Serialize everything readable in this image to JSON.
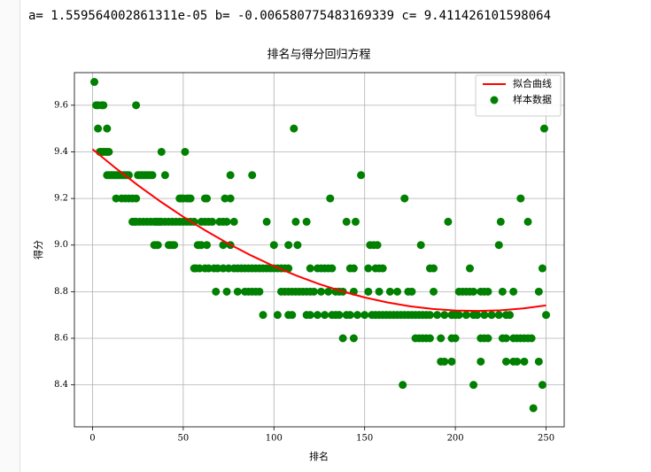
{
  "output_text": "a= 1.559564002861311e-05 b= -0.006580775483169339 c= 9.411426101598064",
  "chart_data": {
    "type": "scatter",
    "title": "排名与得分回归方程",
    "x_label": "排名",
    "y_label": "得分",
    "xlim": [
      -10,
      260
    ],
    "ylim": [
      8.22,
      9.74
    ],
    "xticks": [
      0,
      50,
      100,
      150,
      200,
      250
    ],
    "yticks": [
      8.4,
      8.6,
      8.8,
      {
        "value": 9,
        "label": "9.0"
      },
      9.2,
      9.4,
      9.6
    ],
    "grid": true,
    "legend": "upper right",
    "series": [
      {
        "name": "拟合曲线",
        "type": "line",
        "color": "#ff0000",
        "x": [
          0,
          12.5,
          25,
          37.5,
          50,
          62.5,
          75,
          87.5,
          100,
          112.5,
          125,
          137.5,
          150,
          162.5,
          175,
          187.5,
          200,
          212.5,
          225,
          237.5,
          250
        ],
        "values": [
          9.4114,
          9.3316,
          9.2566,
          9.1866,
          9.1214,
          9.0611,
          9.0056,
          8.955,
          8.9093,
          8.8685,
          8.8325,
          8.8014,
          8.7752,
          8.7539,
          8.7374,
          8.7258,
          8.7191,
          8.7173,
          8.7203,
          8.7282,
          8.741
        ]
      },
      {
        "name": "样本数据",
        "type": "scatter",
        "color": "#008000",
        "x": [
          1,
          2,
          3,
          5,
          6,
          24,
          3,
          8,
          111,
          249,
          4,
          5,
          6,
          7,
          8,
          9,
          38,
          51,
          8,
          9,
          10,
          11,
          12,
          13,
          14,
          15,
          16,
          17,
          18,
          19,
          20,
          25,
          26,
          27,
          28,
          29,
          30,
          31,
          32,
          33,
          40,
          76,
          88,
          148,
          13,
          16,
          18,
          20,
          22,
          24,
          48,
          49,
          50,
          52,
          53,
          54,
          62,
          63,
          73,
          76,
          131,
          172,
          236,
          22,
          23,
          24,
          26,
          28,
          30,
          32,
          34,
          35,
          36,
          37,
          38,
          40,
          42,
          44,
          46,
          48,
          50,
          52,
          54,
          56,
          60,
          62,
          64,
          66,
          70,
          72,
          74,
          78,
          96,
          112,
          118,
          140,
          145,
          196,
          225,
          240,
          34,
          35,
          36,
          42,
          43,
          44,
          45,
          58,
          59,
          60,
          63,
          72,
          76,
          100,
          108,
          113,
          153,
          155,
          157,
          181,
          224,
          56,
          57,
          59,
          62,
          64,
          67,
          69,
          72,
          75,
          78,
          80,
          82,
          84,
          86,
          88,
          90,
          92,
          94,
          96,
          98,
          100,
          102,
          104,
          106,
          108,
          120,
          124,
          126,
          128,
          130,
          132,
          142,
          144,
          152,
          156,
          158,
          160,
          186,
          188,
          208,
          248,
          68,
          74,
          80,
          84,
          86,
          88,
          90,
          92,
          104,
          106,
          108,
          110,
          112,
          114,
          116,
          118,
          120,
          122,
          126,
          130,
          134,
          136,
          138,
          144,
          152,
          158,
          164,
          168,
          174,
          176,
          188,
          202,
          204,
          206,
          208,
          210,
          214,
          216,
          218,
          226,
          232,
          246,
          94,
          102,
          108,
          110,
          118,
          120,
          124,
          128,
          132,
          134,
          136,
          140,
          142,
          146,
          150,
          154,
          156,
          158,
          160,
          162,
          164,
          166,
          168,
          170,
          172,
          174,
          176,
          178,
          180,
          182,
          184,
          186,
          190,
          194,
          198,
          200,
          202,
          206,
          210,
          212,
          216,
          220,
          224,
          228,
          230,
          250,
          138,
          144,
          178,
          180,
          182,
          184,
          186,
          192,
          198,
          200,
          214,
          216,
          218,
          226,
          228,
          232,
          234,
          236,
          238,
          240,
          242,
          192,
          194,
          198,
          214,
          228,
          232,
          234,
          238,
          246,
          171,
          210,
          248,
          243
        ],
        "values": [
          9.7,
          9.6,
          9.6,
          9.6,
          9.6,
          9.6,
          9.5,
          9.5,
          9.5,
          9.5,
          9.4,
          9.4,
          9.4,
          9.4,
          9.4,
          9.4,
          9.4,
          9.4,
          9.3,
          9.3,
          9.3,
          9.3,
          9.3,
          9.3,
          9.3,
          9.3,
          9.3,
          9.3,
          9.3,
          9.3,
          9.3,
          9.3,
          9.3,
          9.3,
          9.3,
          9.3,
          9.3,
          9.3,
          9.3,
          9.3,
          9.3,
          9.3,
          9.3,
          9.3,
          9.2,
          9.2,
          9.2,
          9.2,
          9.2,
          9.2,
          9.2,
          9.2,
          9.2,
          9.2,
          9.2,
          9.2,
          9.2,
          9.2,
          9.2,
          9.2,
          9.2,
          9.2,
          9.2,
          9.1,
          9.1,
          9.1,
          9.1,
          9.1,
          9.1,
          9.1,
          9.1,
          9.1,
          9.1,
          9.1,
          9.1,
          9.1,
          9.1,
          9.1,
          9.1,
          9.1,
          9.1,
          9.1,
          9.1,
          9.1,
          9.1,
          9.1,
          9.1,
          9.1,
          9.1,
          9.1,
          9.1,
          9.1,
          9.1,
          9.1,
          9.1,
          9.1,
          9.1,
          9.1,
          9.1,
          9.1,
          9,
          9,
          9,
          9,
          9,
          9,
          9,
          9,
          9,
          9,
          9,
          9,
          9,
          9,
          9,
          9,
          9,
          9,
          9,
          9,
          9,
          8.9,
          8.9,
          8.9,
          8.9,
          8.9,
          8.9,
          8.9,
          8.9,
          8.9,
          8.9,
          8.9,
          8.9,
          8.9,
          8.9,
          8.9,
          8.9,
          8.9,
          8.9,
          8.9,
          8.9,
          8.9,
          8.9,
          8.9,
          8.9,
          8.9,
          8.9,
          8.9,
          8.9,
          8.9,
          8.9,
          8.9,
          8.9,
          8.9,
          8.9,
          8.9,
          8.9,
          8.9,
          8.9,
          8.9,
          8.9,
          8.9,
          8.8,
          8.8,
          8.8,
          8.8,
          8.8,
          8.8,
          8.8,
          8.8,
          8.8,
          8.8,
          8.8,
          8.8,
          8.8,
          8.8,
          8.8,
          8.8,
          8.8,
          8.8,
          8.8,
          8.8,
          8.8,
          8.8,
          8.8,
          8.8,
          8.8,
          8.8,
          8.8,
          8.8,
          8.8,
          8.8,
          8.8,
          8.8,
          8.8,
          8.8,
          8.8,
          8.8,
          8.8,
          8.8,
          8.8,
          8.8,
          8.8,
          8.8,
          8.7,
          8.7,
          8.7,
          8.7,
          8.7,
          8.7,
          8.7,
          8.7,
          8.7,
          8.7,
          8.7,
          8.7,
          8.7,
          8.7,
          8.7,
          8.7,
          8.7,
          8.7,
          8.7,
          8.7,
          8.7,
          8.7,
          8.7,
          8.7,
          8.7,
          8.7,
          8.7,
          8.7,
          8.7,
          8.7,
          8.7,
          8.7,
          8.7,
          8.7,
          8.7,
          8.7,
          8.7,
          8.7,
          8.7,
          8.7,
          8.7,
          8.7,
          8.7,
          8.7,
          8.7,
          8.7,
          8.6,
          8.6,
          8.6,
          8.6,
          8.6,
          8.6,
          8.6,
          8.6,
          8.6,
          8.6,
          8.6,
          8.6,
          8.6,
          8.6,
          8.6,
          8.6,
          8.6,
          8.6,
          8.6,
          8.6,
          8.6,
          8.5,
          8.5,
          8.5,
          8.5,
          8.5,
          8.5,
          8.5,
          8.5,
          8.5,
          8.4,
          8.4,
          8.4,
          8.3
        ]
      }
    ]
  }
}
